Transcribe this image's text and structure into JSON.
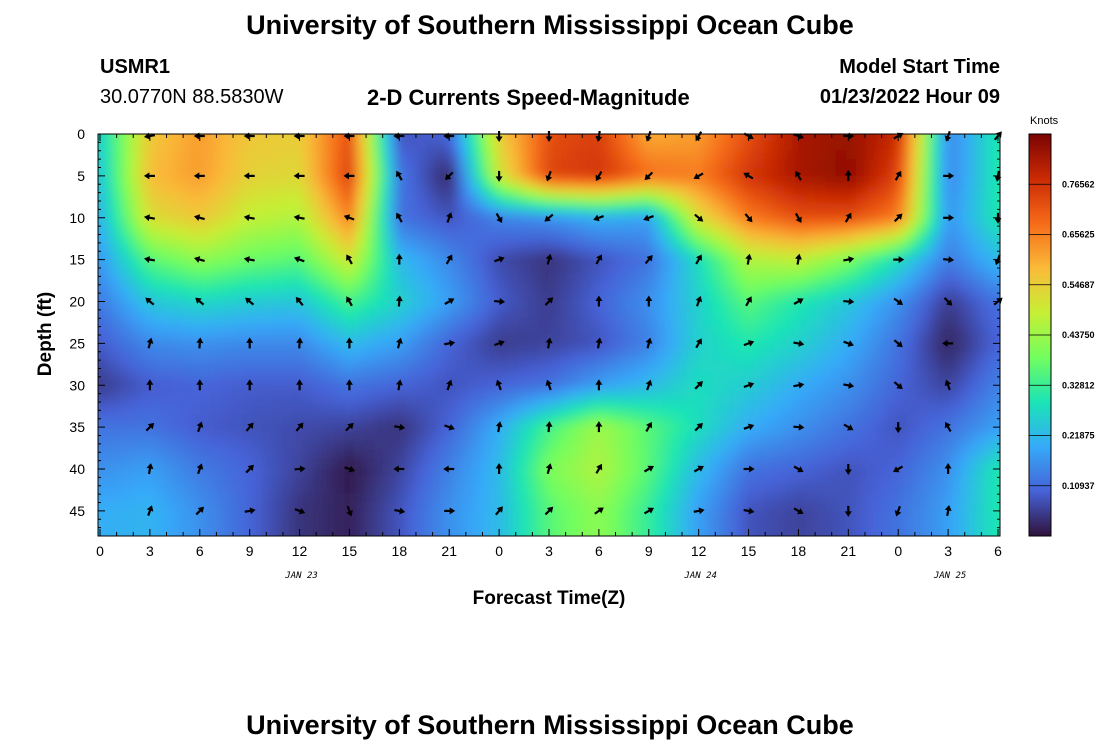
{
  "header": {
    "title": "University of Southern Mississippi Ocean Cube",
    "station_id": "USMR1",
    "coordinates": "30.0770N  88.5830W",
    "subtitle": "2-D Currents Speed-Magnitude",
    "model_start_label": "Model Start Time",
    "model_start_value": "01/23/2022 Hour 09"
  },
  "footer": {
    "title": "University of Southern Mississippi Ocean Cube"
  },
  "chart_data": {
    "type": "heatmap",
    "title": "2-D Currents Speed-Magnitude",
    "xlabel": "Forecast Time(Z)",
    "ylabel": "Depth (ft)",
    "x_tick_labels": [
      "0",
      "3",
      "6",
      "9",
      "12",
      "15",
      "18",
      "21",
      "0",
      "3",
      "6",
      "9",
      "12",
      "15",
      "18",
      "21",
      "0",
      "3",
      "6"
    ],
    "date_labels": [
      {
        "label": "JAN 23",
        "tick_index": 4
      },
      {
        "label": "JAN 24",
        "tick_index": 12
      },
      {
        "label": "JAN 25",
        "tick_index": 17
      }
    ],
    "y_ticks": [
      0,
      5,
      10,
      15,
      20,
      25,
      30,
      35,
      40,
      45
    ],
    "ylim": [
      0,
      48
    ],
    "colorbar": {
      "unit": "Knots",
      "ticks": [
        "0.10937",
        "0.21875",
        "0.32812",
        "0.43750",
        "0.54687",
        "0.65625",
        "0.76562"
      ],
      "range": [
        0,
        0.875
      ],
      "colors": [
        "#30123b",
        "#4662d7",
        "#36aaf9",
        "#1ae4b6",
        "#72fe5e",
        "#c7ef34",
        "#faba39",
        "#f66b19",
        "#cb2a04",
        "#7a0403"
      ]
    },
    "speed_knots": {
      "depths_ft": [
        0,
        5,
        10,
        15,
        20,
        25,
        30,
        35,
        40,
        45
      ],
      "time_index": [
        0,
        1,
        2,
        3,
        4,
        5,
        6,
        7,
        8,
        9,
        10,
        11,
        12,
        13,
        14,
        15,
        16,
        17,
        18
      ],
      "values": [
        [
          0.26,
          0.56,
          0.62,
          0.56,
          0.55,
          0.72,
          0.08,
          0.1,
          0.55,
          0.72,
          0.75,
          0.6,
          0.62,
          0.72,
          0.82,
          0.84,
          0.78,
          0.14,
          0.3
        ],
        [
          0.24,
          0.58,
          0.62,
          0.54,
          0.53,
          0.74,
          0.13,
          0.02,
          0.5,
          0.74,
          0.76,
          0.68,
          0.66,
          0.76,
          0.82,
          0.85,
          0.74,
          0.14,
          0.3
        ],
        [
          0.21,
          0.52,
          0.56,
          0.48,
          0.46,
          0.65,
          0.12,
          0.08,
          0.14,
          0.16,
          0.2,
          0.18,
          0.52,
          0.66,
          0.72,
          0.72,
          0.66,
          0.16,
          0.3
        ],
        [
          0.17,
          0.36,
          0.42,
          0.38,
          0.36,
          0.5,
          0.22,
          0.15,
          0.07,
          0.04,
          0.08,
          0.12,
          0.28,
          0.46,
          0.48,
          0.4,
          0.28,
          0.13,
          0.22
        ],
        [
          0.13,
          0.24,
          0.27,
          0.25,
          0.24,
          0.34,
          0.26,
          0.18,
          0.09,
          0.05,
          0.1,
          0.16,
          0.26,
          0.36,
          0.3,
          0.24,
          0.16,
          0.05,
          0.12
        ],
        [
          0.09,
          0.15,
          0.16,
          0.15,
          0.15,
          0.22,
          0.18,
          0.1,
          0.05,
          0.06,
          0.08,
          0.14,
          0.26,
          0.3,
          0.26,
          0.2,
          0.12,
          0.02,
          0.1
        ],
        [
          0.05,
          0.09,
          0.1,
          0.09,
          0.09,
          0.12,
          0.1,
          0.08,
          0.1,
          0.12,
          0.18,
          0.22,
          0.28,
          0.25,
          0.2,
          0.16,
          0.1,
          0.06,
          0.14
        ],
        [
          0.12,
          0.12,
          0.09,
          0.08,
          0.07,
          0.06,
          0.04,
          0.1,
          0.2,
          0.34,
          0.44,
          0.36,
          0.28,
          0.2,
          0.16,
          0.12,
          0.08,
          0.12,
          0.18
        ],
        [
          0.16,
          0.18,
          0.13,
          0.1,
          0.06,
          0.01,
          0.06,
          0.14,
          0.22,
          0.4,
          0.46,
          0.36,
          0.22,
          0.12,
          0.1,
          0.08,
          0.1,
          0.16,
          0.3
        ],
        [
          0.2,
          0.21,
          0.16,
          0.1,
          0.04,
          0.02,
          0.08,
          0.16,
          0.22,
          0.36,
          0.42,
          0.32,
          0.18,
          0.08,
          0.06,
          0.08,
          0.12,
          0.18,
          0.3
        ]
      ]
    },
    "vectors_deg": {
      "depths_ft": [
        0,
        5,
        10,
        15,
        20,
        25,
        30,
        35,
        40,
        45
      ],
      "time_index": [
        0,
        1,
        2,
        3,
        4,
        5,
        6,
        7,
        8,
        9,
        10,
        11,
        12,
        13,
        14,
        15,
        16,
        17,
        18
      ],
      "directions": [
        [
          null,
          260,
          270,
          270,
          270,
          270,
          270,
          270,
          180,
          180,
          190,
          200,
          210,
          120,
          110,
          90,
          60,
          200,
          40
        ],
        [
          null,
          270,
          270,
          270,
          270,
          270,
          330,
          225,
          180,
          200,
          210,
          225,
          240,
          300,
          330,
          0,
          30,
          90,
          190
        ],
        [
          null,
          280,
          285,
          280,
          280,
          290,
          330,
          20,
          150,
          230,
          250,
          250,
          130,
          140,
          150,
          30,
          45,
          90,
          180
        ],
        [
          null,
          280,
          285,
          280,
          290,
          330,
          0,
          30,
          70,
          15,
          30,
          40,
          30,
          10,
          10,
          80,
          90,
          95,
          200
        ],
        [
          null,
          310,
          310,
          310,
          320,
          330,
          5,
          60,
          95,
          45,
          0,
          0,
          20,
          30,
          60,
          95,
          125,
          135,
          50
        ],
        [
          null,
          15,
          5,
          0,
          5,
          0,
          15,
          80,
          70,
          10,
          10,
          15,
          30,
          70,
          100,
          110,
          130,
          270,
          null
        ],
        [
          null,
          0,
          0,
          0,
          0,
          0,
          10,
          20,
          340,
          340,
          0,
          20,
          45,
          70,
          80,
          100,
          130,
          340,
          null
        ],
        [
          null,
          45,
          20,
          40,
          40,
          45,
          100,
          110,
          10,
          5,
          0,
          30,
          45,
          70,
          95,
          120,
          180,
          330,
          null
        ],
        [
          null,
          10,
          20,
          45,
          85,
          110,
          270,
          270,
          0,
          15,
          30,
          60,
          60,
          90,
          120,
          180,
          240,
          0,
          null
        ],
        [
          null,
          20,
          45,
          80,
          110,
          160,
          100,
          90,
          40,
          45,
          55,
          60,
          80,
          100,
          120,
          180,
          200,
          10,
          null
        ]
      ]
    }
  }
}
